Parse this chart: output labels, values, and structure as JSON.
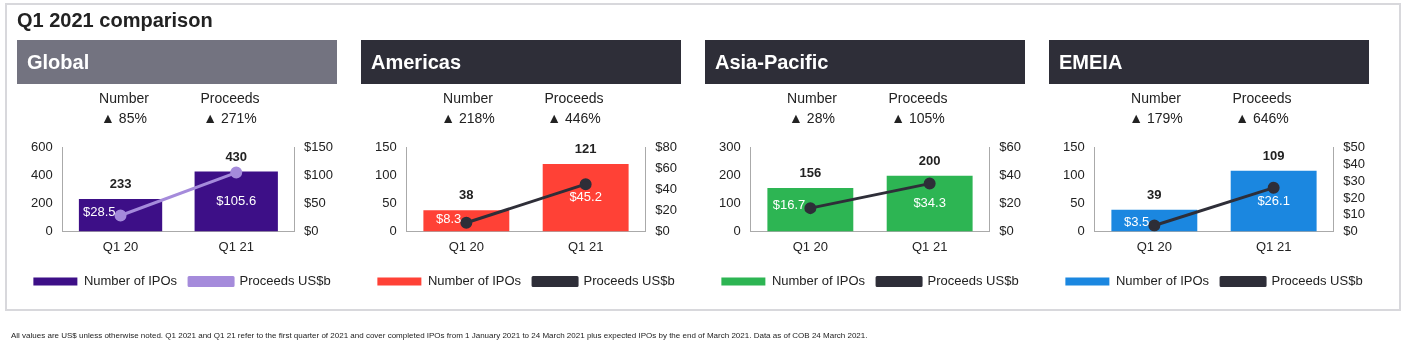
{
  "chart_data": [
    {
      "type": "other",
      "title": "Q1 2021 comparison",
      "annotations": [
        "All values are US$ unless otherwise noted. Q1 2021 and Q1 21 refer to the first quarter of 2021 and cover completed IPOs from 1 January 2021 to 24 March 2021 plus expected IPOs by the end of March 2021. Data as of COB 24 March 2021."
      ]
    },
    {
      "type": "bar",
      "title": "Global",
      "annotations": [
        "Number",
        "Proceeds",
        "▲ 85%",
        "▲ 271%"
      ],
      "categories": [
        "Q1 20",
        "Q1 21"
      ],
      "series": [
        {
          "name": "Number of IPOs",
          "type": "bar",
          "color": "#3d0f87",
          "values": [
            233,
            430
          ],
          "value_labels": [
            "233",
            "430"
          ]
        },
        {
          "name": "Proceeds US$b",
          "type": "line",
          "axis": "y2",
          "color": "#a58bdb",
          "values": [
            28.5,
            105.6
          ],
          "value_labels": [
            "$28.5",
            "$105.6"
          ]
        }
      ],
      "ylim": [
        0,
        600
      ],
      "yticks": [
        0,
        200,
        400,
        600
      ],
      "y2lim": [
        0,
        150
      ],
      "y2ticks": [
        {
          "value": 0,
          "label": "$0"
        },
        {
          "value": 50,
          "label": "$50"
        },
        {
          "value": 100,
          "label": "$100"
        },
        {
          "value": 150,
          "label": "$150"
        }
      ],
      "legend": "bottom",
      "marker": "circle",
      "grid": false
    },
    {
      "type": "bar",
      "title": "Americas",
      "annotations": [
        "Number",
        "Proceeds",
        "▲ 218%",
        "▲ 446%"
      ],
      "categories": [
        "Q1 20",
        "Q1 21"
      ],
      "series": [
        {
          "name": "Number of IPOs",
          "type": "bar",
          "color": "#ff4136",
          "values": [
            38,
            121
          ],
          "value_labels": [
            "38",
            "121"
          ]
        },
        {
          "name": "Proceeds US$b",
          "type": "line",
          "axis": "y2",
          "color": "#2e2e38",
          "values": [
            8.3,
            45.2
          ],
          "value_labels": [
            "$8.3",
            "$45.2"
          ]
        }
      ],
      "ylim": [
        0,
        150
      ],
      "yticks": [
        0,
        50,
        100,
        150
      ],
      "y2lim": [
        0,
        80
      ],
      "y2ticks": [
        {
          "value": 0,
          "label": "$0"
        },
        {
          "value": 20,
          "label": "$20"
        },
        {
          "value": 40,
          "label": "$40"
        },
        {
          "value": 60,
          "label": "$60"
        },
        {
          "value": 80,
          "label": "$80"
        }
      ],
      "legend": "bottom",
      "marker": "circle",
      "grid": false
    },
    {
      "type": "bar",
      "title": "Asia-Pacific",
      "annotations": [
        "Number",
        "Proceeds",
        "▲ 28%",
        "▲ 105%"
      ],
      "categories": [
        "Q1 20",
        "Q1 21"
      ],
      "series": [
        {
          "name": "Number of IPOs",
          "type": "bar",
          "color": "#2db553",
          "values": [
            156,
            200
          ],
          "value_labels": [
            "156",
            "200"
          ]
        },
        {
          "name": "Proceeds US$b",
          "type": "line",
          "axis": "y2",
          "color": "#2e2e38",
          "values": [
            16.7,
            34.3
          ],
          "value_labels": [
            "$16.7",
            "$34.3"
          ]
        }
      ],
      "ylim": [
        0,
        300
      ],
      "yticks": [
        0,
        100,
        200,
        300
      ],
      "y2lim": [
        0,
        60
      ],
      "y2ticks": [
        {
          "value": 0,
          "label": "$0"
        },
        {
          "value": 20,
          "label": "$20"
        },
        {
          "value": 40,
          "label": "$40"
        },
        {
          "value": 60,
          "label": "$60"
        }
      ],
      "legend": "bottom",
      "marker": "circle",
      "grid": false
    },
    {
      "type": "bar",
      "title": "EMEIA",
      "annotations": [
        "Number",
        "Proceeds",
        "▲ 179%",
        "▲ 646%"
      ],
      "categories": [
        "Q1 20",
        "Q1 21"
      ],
      "series": [
        {
          "name": "Number of IPOs",
          "type": "bar",
          "color": "#1b87e0",
          "values": [
            39,
            109
          ],
          "value_labels": [
            "39",
            "109"
          ]
        },
        {
          "name": "Proceeds US$b",
          "type": "line",
          "axis": "y2",
          "color": "#2e2e38",
          "values": [
            3.5,
            26.1
          ],
          "value_labels": [
            "$3.5",
            "$26.1"
          ]
        }
      ],
      "ylim": [
        0,
        150
      ],
      "yticks": [
        0,
        50,
        100,
        150
      ],
      "y2lim": [
        0,
        50
      ],
      "y2ticks": [
        {
          "value": 0,
          "label": "$0"
        },
        {
          "value": 10,
          "label": "$10"
        },
        {
          "value": 20,
          "label": "$20"
        },
        {
          "value": 30,
          "label": "$30"
        },
        {
          "value": 40,
          "label": "$40"
        },
        {
          "value": 50,
          "label": "$50"
        }
      ],
      "legend": "bottom",
      "marker": "circle",
      "grid": false
    }
  ]
}
